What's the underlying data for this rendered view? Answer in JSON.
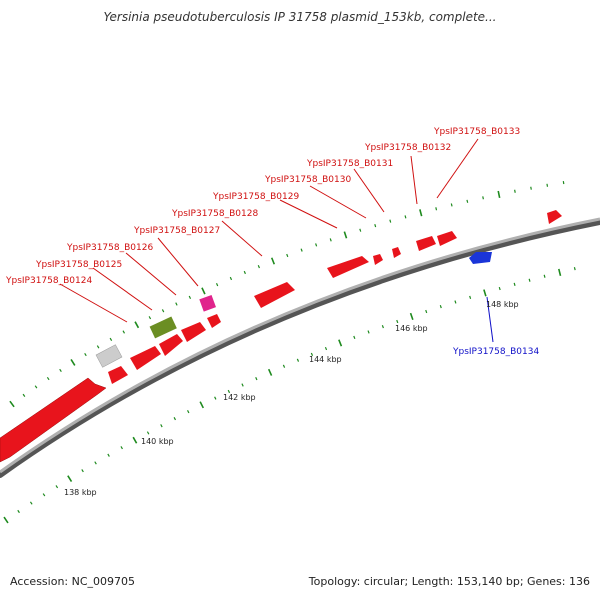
{
  "title": "Yersinia pseudotuberculosis IP 31758 plasmid_153kb, complete...",
  "footer": {
    "accession_label": "Accession:",
    "accession": "NC_009705",
    "topology_label": "Topology:",
    "topology": "circular",
    "length_label": "Length:",
    "length": "153,140 bp",
    "genes_label": "Genes:",
    "genes": "136"
  },
  "colors": {
    "forward_gene": "#e8141c",
    "reverse_gene": "#1a35d8",
    "rna_gene": "#6b8e23",
    "pseudo_gene": "#cccccc",
    "other_gene": "#e0248c",
    "backbone": "#8c8c8c",
    "tick": "#1e8a1e",
    "forward_label": "#d01010",
    "reverse_label": "#1010c8"
  },
  "scale_labels": [
    "138 kbp",
    "140 kbp",
    "142 kbp",
    "144 kbp",
    "146 kbp",
    "148 kbp"
  ],
  "gene_labels": [
    {
      "text": "YpsIP31758_B0124",
      "strand": "forward"
    },
    {
      "text": "YpsIP31758_B0125",
      "strand": "forward"
    },
    {
      "text": "YpsIP31758_B0126",
      "strand": "forward"
    },
    {
      "text": "YpsIP31758_B0127",
      "strand": "forward"
    },
    {
      "text": "YpsIP31758_B0128",
      "strand": "forward"
    },
    {
      "text": "YpsIP31758_B0129",
      "strand": "forward"
    },
    {
      "text": "YpsIP31758_B0130",
      "strand": "forward"
    },
    {
      "text": "YpsIP31758_B0131",
      "strand": "forward"
    },
    {
      "text": "YpsIP31758_B0132",
      "strand": "forward"
    },
    {
      "text": "YpsIP31758_B0133",
      "strand": "forward"
    },
    {
      "text": "YpsIP31758_B0134",
      "strand": "reverse"
    }
  ]
}
